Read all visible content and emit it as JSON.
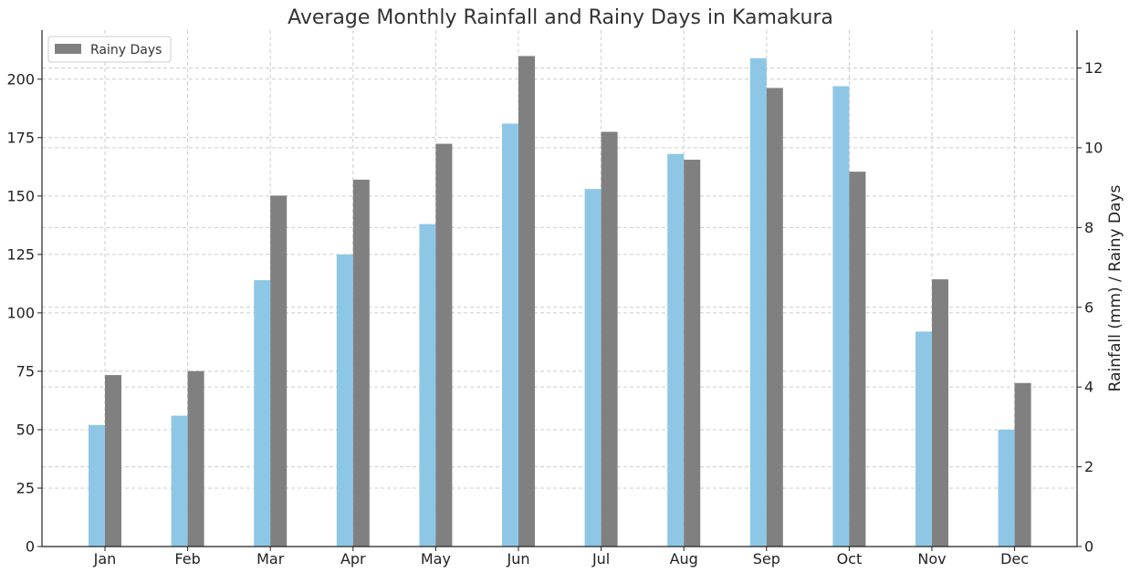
{
  "chart_data": {
    "type": "bar",
    "title": "Average Monthly Rainfall and Rainy Days in Kamakura",
    "categories": [
      "Jan",
      "Feb",
      "Mar",
      "Apr",
      "May",
      "Jun",
      "Jul",
      "Aug",
      "Sep",
      "Oct",
      "Nov",
      "Dec"
    ],
    "series": [
      {
        "name": "Rainfall (mm)",
        "axis": "left",
        "color": "#8ec7e6",
        "values": [
          52,
          56,
          114,
          125,
          138,
          181,
          153,
          168,
          209,
          197,
          92,
          50
        ]
      },
      {
        "name": "Rainy Days",
        "axis": "right",
        "color": "#808080",
        "values": [
          4.3,
          4.4,
          8.8,
          9.2,
          10.1,
          12.3,
          10.4,
          9.7,
          11.5,
          9.4,
          6.7,
          4.1
        ]
      }
    ],
    "y_left": {
      "lim": [
        0,
        221
      ],
      "ticks": [
        0,
        25,
        50,
        75,
        100,
        125,
        150,
        175,
        200
      ]
    },
    "y_right": {
      "label": "Rainfall (mm) / Rainy Days",
      "lim": [
        0,
        12.95
      ],
      "ticks": [
        0,
        2,
        4,
        6,
        8,
        10,
        12
      ]
    },
    "legend": {
      "position": "top-left",
      "entries": [
        "Rainy Days"
      ]
    },
    "grid": true
  }
}
